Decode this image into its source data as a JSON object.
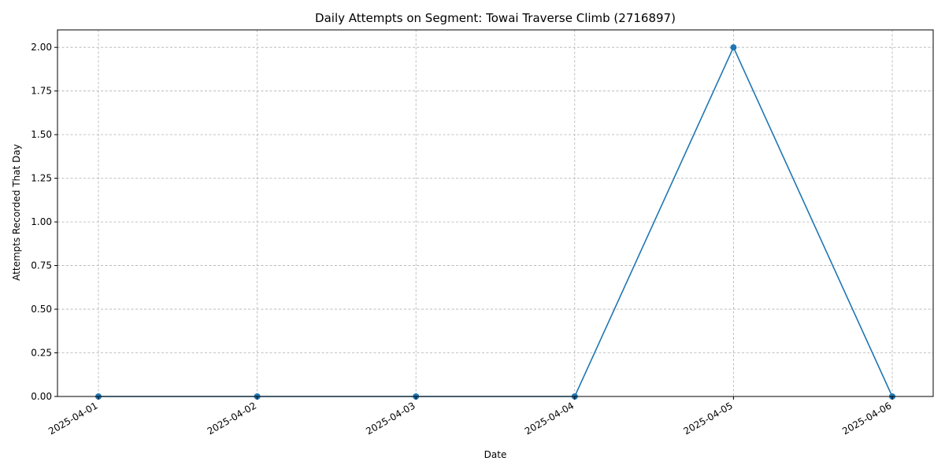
{
  "chart_data": {
    "type": "line",
    "title": "Daily Attempts on Segment: Towai Traverse Climb (2716897)",
    "xlabel": "Date",
    "ylabel": "Attempts Recorded That Day",
    "categories": [
      "2025-04-01",
      "2025-04-02",
      "2025-04-03",
      "2025-04-04",
      "2025-04-05",
      "2025-04-06"
    ],
    "series": [
      {
        "values": [
          0,
          0,
          0,
          0,
          2,
          0
        ],
        "color": "#1f77b4",
        "marker": "circle"
      }
    ],
    "ylim": [
      0,
      2.1
    ],
    "yticks": [
      "0.00",
      "0.25",
      "0.50",
      "0.75",
      "1.00",
      "1.25",
      "1.50",
      "1.75",
      "2.00"
    ],
    "grid": true,
    "legend": "none"
  }
}
